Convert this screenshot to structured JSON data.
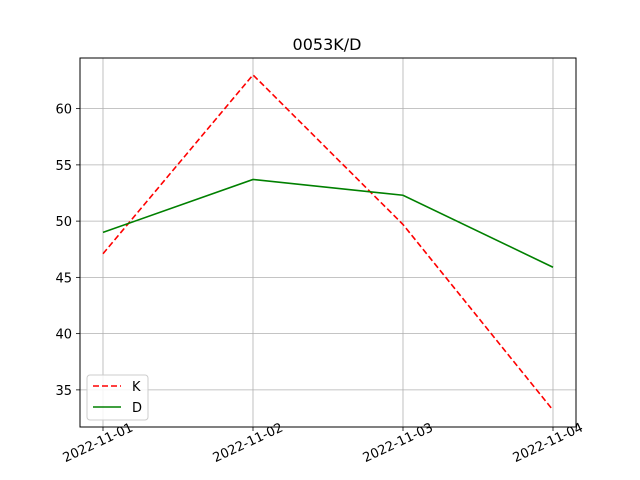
{
  "chart_data": {
    "type": "line",
    "title": "0053K/D",
    "xlabel": "",
    "ylabel": "",
    "x": [
      "2022-11-01",
      "2022-11-02",
      "2022-11-03",
      "2022-11-04"
    ],
    "series": [
      {
        "name": "K",
        "values": [
          47.1,
          63.0,
          49.7,
          33.2
        ],
        "color": "#ff0000",
        "style": "dashed"
      },
      {
        "name": "D",
        "values": [
          49.0,
          53.7,
          52.3,
          45.9
        ],
        "color": "#008000",
        "style": "solid"
      }
    ],
    "ylim": [
      31.7,
      64.5
    ],
    "yticks": [
      35,
      40,
      45,
      50,
      55,
      60
    ],
    "grid": true,
    "legend_position": "lower-left"
  }
}
